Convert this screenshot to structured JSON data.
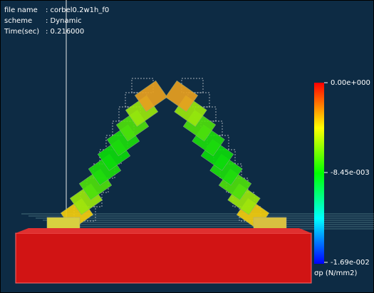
{
  "info": {
    "rows": [
      {
        "label": "file name",
        "value": ": corbel0.2w1h_f0"
      },
      {
        "label": "scheme",
        "value": ": Dynamic"
      },
      {
        "label": "Time(sec)",
        "value": ": 0.216000"
      }
    ]
  },
  "colorbar": {
    "labels": [
      "0.00e+000",
      "-8.45e-003",
      "-1.69e-002"
    ],
    "unit": "σp (N/mm2)"
  }
}
